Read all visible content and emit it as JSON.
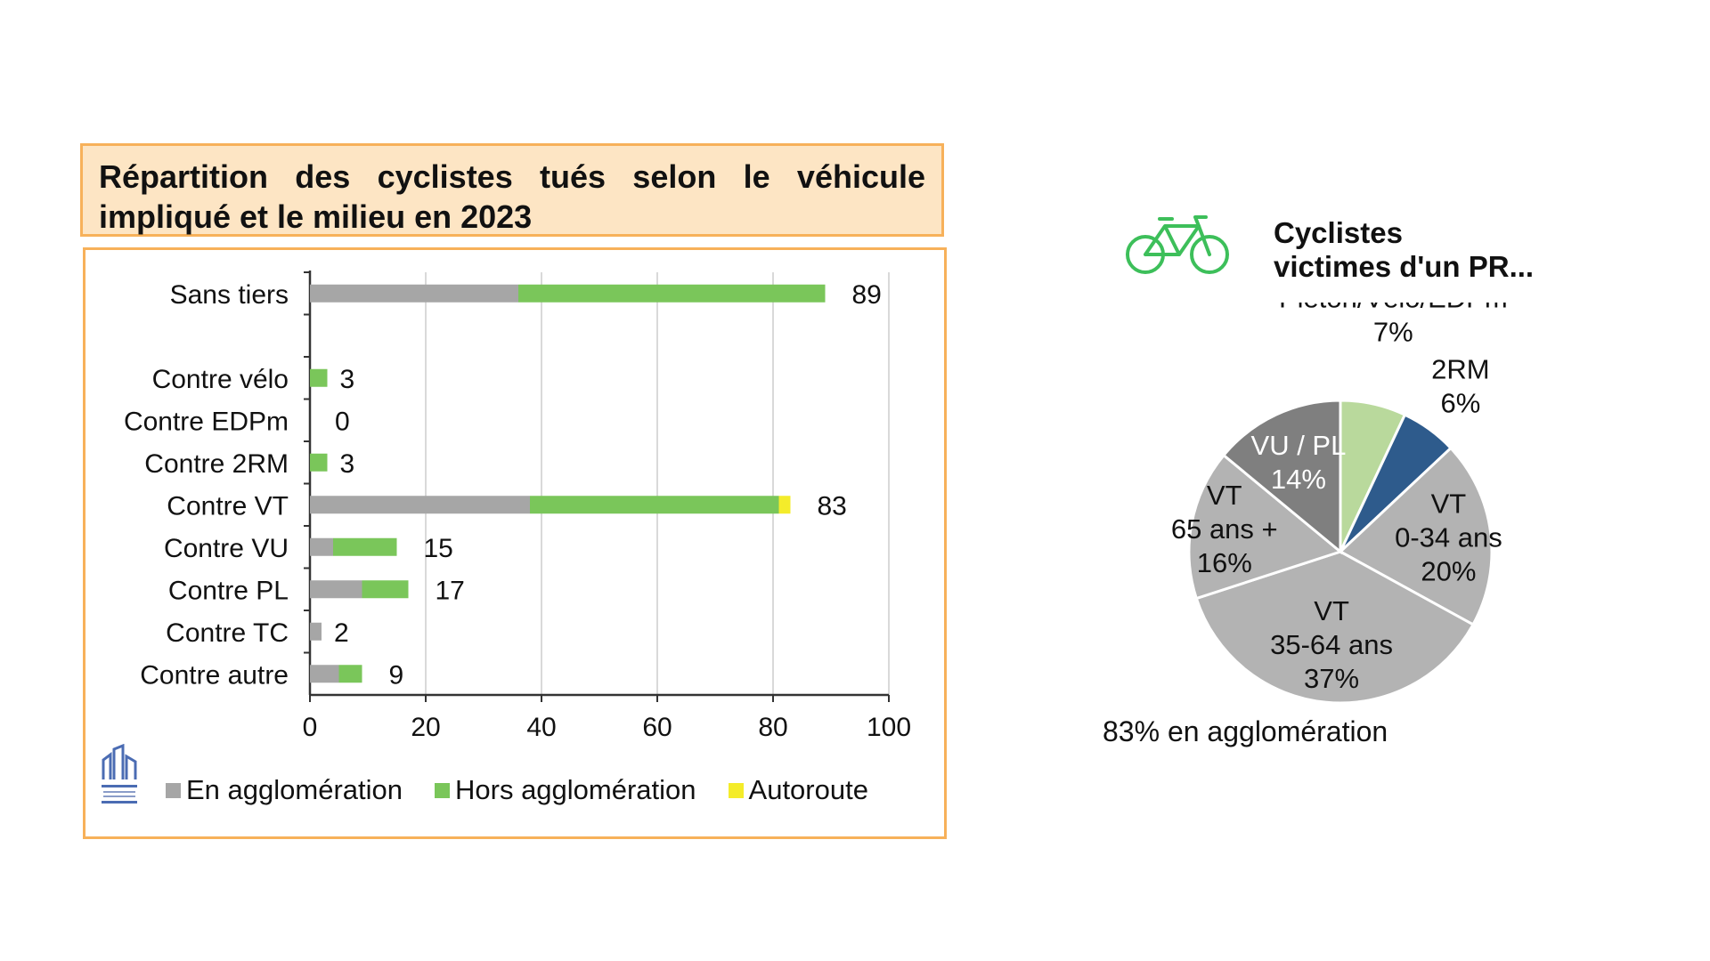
{
  "bar_chart": {
    "title": "Répartition des cyclistes tués selon le véhicule impliqué et le milieu en 2023"
  },
  "pie_chart": {
    "title": "Cyclistes\nvictimes d'un PR...",
    "note": "83% en agglomération"
  },
  "colors": {
    "en_agglo": "#a6a6a6",
    "hors_agglo": "#7ac65a",
    "autoroute": "#f4ec2a",
    "pieton": "#b9d99c",
    "deux_rm": "#2e5b8c",
    "vt": "#b3b3b3",
    "vu_pl": "#7f7f7f",
    "bike": "#3dbf5a"
  },
  "icons": {
    "bike": "bicycle-icon",
    "logo": "building-logo-icon"
  },
  "chart_data": [
    {
      "type": "bar",
      "orientation": "horizontal",
      "stacked": true,
      "title": "Répartition des cyclistes tués selon le véhicule impliqué et le milieu en 2023",
      "categories": [
        "Sans tiers",
        "",
        "Contre vélo",
        "Contre EDPm",
        "Contre 2RM",
        "Contre VT",
        "Contre VU",
        "Contre PL",
        "Contre TC",
        "Contre autre"
      ],
      "series": [
        {
          "name": "En agglomération",
          "values": [
            36,
            null,
            0,
            0,
            0,
            38,
            4,
            9,
            2,
            5
          ]
        },
        {
          "name": "Hors agglomération",
          "values": [
            53,
            null,
            3,
            0,
            3,
            43,
            11,
            8,
            0,
            4
          ]
        },
        {
          "name": "Autoroute",
          "values": [
            0,
            null,
            0,
            0,
            0,
            2,
            0,
            0,
            0,
            0
          ]
        }
      ],
      "totals": [
        "89",
        "",
        "3",
        "0",
        "3",
        "83",
        "15",
        "17",
        "2",
        "9"
      ],
      "xlim": [
        0,
        100
      ],
      "xticks": [
        "0",
        "20",
        "40",
        "60",
        "80",
        "100"
      ],
      "grid": true,
      "legend_position": "bottom"
    },
    {
      "type": "pie",
      "title": "Cyclistes victimes d'un PR...",
      "slices": [
        {
          "label": "Piéton/Vélo/EDPm",
          "pct_label": "7%",
          "value": 7
        },
        {
          "label": "2RM",
          "pct_label": "6%",
          "value": 6
        },
        {
          "label": "VT\n0-34 ans",
          "pct_label": "20%",
          "value": 20
        },
        {
          "label": "VT\n35-64 ans",
          "pct_label": "37%",
          "value": 37
        },
        {
          "label": "VT\n65 ans +",
          "pct_label": "16%",
          "value": 16
        },
        {
          "label": "VU / PL",
          "pct_label": "14%",
          "value": 14
        }
      ]
    }
  ]
}
